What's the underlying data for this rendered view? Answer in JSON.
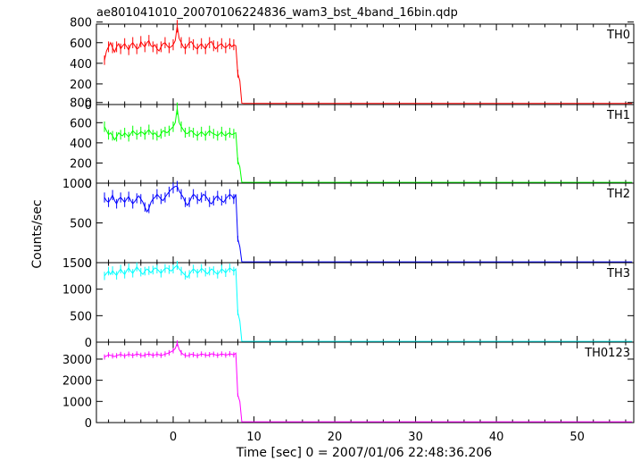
{
  "chart_data": {
    "type": "line",
    "title": "ae801041010_20070106224836_wam3_bst_4band_16bin.qdp",
    "xlabel": "Time [sec] 0 = 2007/01/06 22:48:36.206",
    "ylabel": "Counts/sec",
    "xlim": [
      -9.5,
      57
    ],
    "xticks": [
      0,
      10,
      20,
      30,
      40,
      50
    ],
    "grid": false,
    "panels": [
      {
        "name": "TH0",
        "color": "#ff0000",
        "ylim": [
          0,
          780
        ],
        "yticks": [
          0,
          200,
          400,
          600,
          800
        ],
        "series": {
          "t_start": -8.5,
          "t_step": 0.25,
          "values": [
            430,
            520,
            560,
            600,
            550,
            510,
            560,
            590,
            540,
            570,
            590,
            560,
            530,
            580,
            600,
            570,
            540,
            550,
            610,
            580,
            560,
            600,
            620,
            570,
            560,
            580,
            540,
            520,
            560,
            590,
            600,
            570,
            550,
            560,
            580,
            620,
            760,
            640,
            600,
            560,
            540,
            570,
            600,
            610,
            580,
            550,
            540,
            570,
            590,
            560,
            540,
            580,
            600,
            610,
            570,
            540,
            560,
            580,
            590,
            560,
            550,
            570,
            590,
            560,
            580,
            570,
            300,
            230,
            12,
            10,
            10,
            10,
            10,
            10,
            10,
            10
          ]
        }
      },
      {
        "name": "TH1",
        "color": "#00ff00",
        "ylim": [
          0,
          780
        ],
        "yticks": [
          0,
          200,
          400,
          600,
          800
        ],
        "series": {
          "t_start": -8.5,
          "t_step": 0.25,
          "values": [
            560,
            520,
            480,
            500,
            470,
            430,
            460,
            500,
            480,
            470,
            500,
            480,
            460,
            490,
            520,
            500,
            480,
            490,
            510,
            500,
            480,
            510,
            530,
            500,
            480,
            500,
            470,
            460,
            490,
            520,
            510,
            500,
            520,
            540,
            560,
            600,
            740,
            600,
            560,
            530,
            500,
            490,
            510,
            520,
            500,
            480,
            470,
            490,
            510,
            490,
            470,
            500,
            520,
            500,
            490,
            480,
            470,
            490,
            510,
            480,
            470,
            490,
            500,
            480,
            490,
            500,
            220,
            160,
            8,
            8,
            8,
            8,
            8,
            8,
            8,
            8
          ]
        }
      },
      {
        "name": "TH2",
        "color": "#0000ff",
        "ylim": [
          0,
          1000
        ],
        "yticks": [
          0,
          500,
          1000
        ],
        "series": {
          "t_start": -8.5,
          "t_step": 0.25,
          "values": [
            820,
            780,
            760,
            800,
            850,
            780,
            740,
            800,
            820,
            790,
            760,
            800,
            830,
            780,
            740,
            770,
            810,
            840,
            800,
            760,
            700,
            640,
            680,
            760,
            800,
            820,
            860,
            830,
            800,
            780,
            820,
            860,
            890,
            920,
            940,
            960,
            960,
            900,
            860,
            820,
            760,
            720,
            760,
            820,
            860,
            840,
            800,
            780,
            820,
            860,
            840,
            800,
            760,
            740,
            780,
            820,
            840,
            800,
            780,
            760,
            800,
            830,
            860,
            840,
            800,
            860,
            300,
            200,
            10,
            10,
            10,
            10,
            10,
            10,
            10,
            10
          ]
        }
      },
      {
        "name": "TH3",
        "color": "#00ffff",
        "ylim": [
          0,
          1500
        ],
        "yticks": [
          0,
          500,
          1000,
          1500
        ],
        "series": {
          "t_start": -8.5,
          "t_step": 0.25,
          "values": [
            1250,
            1300,
            1340,
            1280,
            1350,
            1300,
            1260,
            1330,
            1380,
            1320,
            1280,
            1350,
            1400,
            1340,
            1300,
            1360,
            1420,
            1370,
            1320,
            1280,
            1340,
            1380,
            1350,
            1310,
            1360,
            1400,
            1380,
            1340,
            1300,
            1350,
            1390,
            1400,
            1370,
            1340,
            1380,
            1420,
            1450,
            1380,
            1340,
            1300,
            1260,
            1220,
            1280,
            1340,
            1380,
            1350,
            1300,
            1340,
            1390,
            1360,
            1320,
            1290,
            1340,
            1380,
            1350,
            1310,
            1280,
            1330,
            1380,
            1350,
            1310,
            1360,
            1400,
            1370,
            1340,
            1380,
            560,
            400,
            15,
            15,
            15,
            15,
            15,
            15,
            15,
            15
          ]
        }
      },
      {
        "name": "TH0123",
        "color": "#ff00ff",
        "ylim": [
          0,
          3800
        ],
        "yticks": [
          0,
          1000,
          2000,
          3000
        ],
        "series": {
          "t_start": -8.5,
          "t_step": 0.25,
          "values": [
            3100,
            3150,
            3200,
            3180,
            3150,
            3120,
            3160,
            3200,
            3220,
            3180,
            3150,
            3190,
            3230,
            3200,
            3170,
            3200,
            3240,
            3220,
            3180,
            3160,
            3190,
            3220,
            3240,
            3210,
            3180,
            3200,
            3230,
            3210,
            3180,
            3200,
            3240,
            3260,
            3300,
            3350,
            3400,
            3500,
            3750,
            3450,
            3300,
            3220,
            3180,
            3150,
            3190,
            3230,
            3210,
            3180,
            3160,
            3200,
            3240,
            3220,
            3190,
            3170,
            3210,
            3250,
            3230,
            3200,
            3180,
            3210,
            3240,
            3220,
            3190,
            3210,
            3250,
            3230,
            3200,
            3280,
            1300,
            1000,
            40,
            40,
            40,
            40,
            40,
            40,
            40,
            40
          ]
        }
      }
    ]
  }
}
